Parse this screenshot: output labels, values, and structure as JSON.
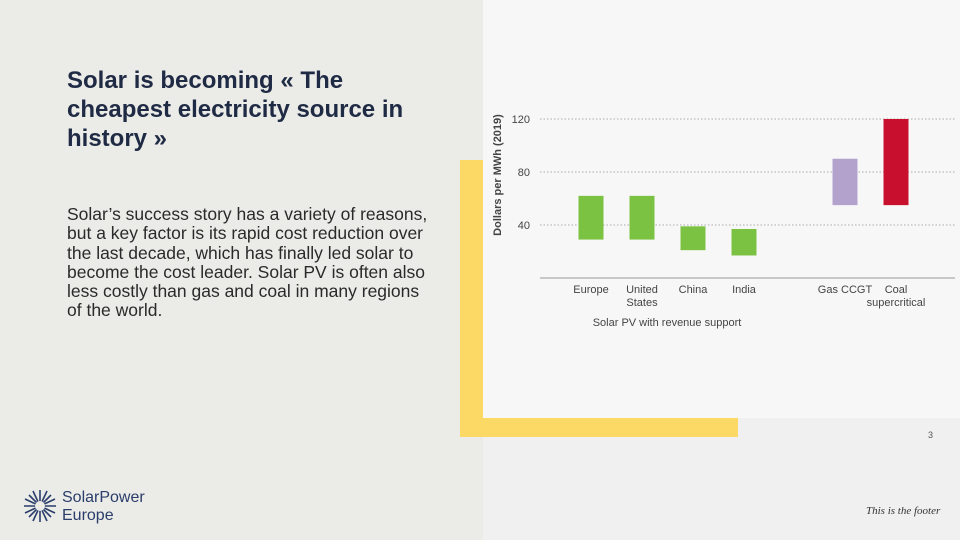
{
  "slide": {
    "title": "Solar is becoming « The cheapest electricity source in history »",
    "body": "Solar’s success story has a variety of reasons, but a key factor is its rapid cost reduction over the last decade, which has finally led solar to become the cost leader. Solar PV is often also less costly than gas and coal in many regions of the world.",
    "page_number": "3",
    "footer": "This is the footer",
    "logo": [
      "SolarPower",
      "Europe"
    ]
  },
  "chart_data": {
    "type": "floating-bar",
    "y_label": "Dollars per MWh (2019)",
    "categories": [
      "Europe",
      "United States",
      "China",
      "India",
      "Gas CCGT",
      "Coal supercritical"
    ],
    "low": [
      29,
      29,
      21,
      17,
      55,
      55
    ],
    "high": [
      62,
      62,
      39,
      37,
      90,
      120
    ],
    "colors": [
      "#7cc242",
      "#7cc242",
      "#7cc242",
      "#7cc242",
      "#b3a3cc",
      "#c8102e"
    ],
    "group_label": "Solar PV with revenue support",
    "ylim": [
      0,
      120
    ],
    "yticks": [
      40,
      80,
      120
    ],
    "grid": true
  }
}
